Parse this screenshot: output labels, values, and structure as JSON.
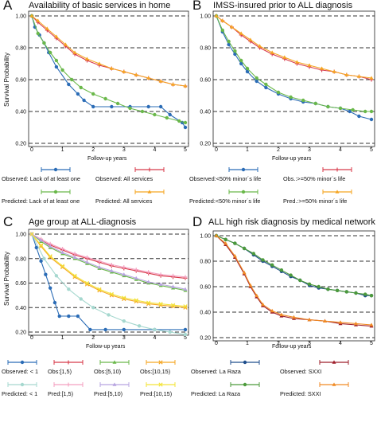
{
  "chart_data": [
    {
      "panel": "A",
      "title": "Availability of basic services in home",
      "type": "line",
      "ylabel": "Survival Probability",
      "xlabel": "Follow-up years",
      "xlim": [
        0,
        5
      ],
      "ylim": [
        0.2,
        1.0
      ],
      "xticks": [
        "0",
        "1",
        "2",
        "3",
        "4",
        "5"
      ],
      "yticks": [
        "0.20",
        "0.40",
        "0.60",
        "0.80",
        "1.00"
      ],
      "dashed_grid_y": [
        0.2,
        0.4,
        0.6,
        0.8,
        1.0
      ],
      "series": [
        {
          "name": "Observed: Lack of at least one",
          "color": "#2b6cb6",
          "marker": "circle",
          "x": [
            0,
            0.1,
            0.25,
            0.4,
            0.55,
            0.8,
            1.2,
            1.5,
            1.7,
            2.0,
            2.6,
            3.2,
            3.8,
            4.2,
            4.5,
            4.9,
            5.0
          ],
          "y": [
            1.0,
            0.93,
            0.88,
            0.83,
            0.77,
            0.68,
            0.57,
            0.51,
            0.47,
            0.43,
            0.43,
            0.43,
            0.43,
            0.43,
            0.38,
            0.33,
            0.3
          ]
        },
        {
          "name": "Observed: All services",
          "color": "#d83a4a",
          "marker": "plus",
          "x": [
            0,
            0.2,
            0.5,
            0.8,
            1.1,
            1.4,
            1.8,
            2.2,
            2.6,
            3.0,
            3.4,
            3.8,
            4.2,
            4.6,
            5.0
          ],
          "y": [
            1.0,
            0.96,
            0.91,
            0.86,
            0.81,
            0.76,
            0.72,
            0.69,
            0.67,
            0.65,
            0.63,
            0.61,
            0.59,
            0.57,
            0.56
          ]
        },
        {
          "name": "Predicted: Lack of at least one",
          "color": "#6ab84a",
          "marker": "circle",
          "x": [
            0,
            0.2,
            0.4,
            0.6,
            0.8,
            1.0,
            1.3,
            1.6,
            2.0,
            2.4,
            2.8,
            3.2,
            3.6,
            4.0,
            4.4,
            4.8,
            5.0
          ],
          "y": [
            1.0,
            0.89,
            0.83,
            0.77,
            0.72,
            0.66,
            0.6,
            0.55,
            0.51,
            0.48,
            0.45,
            0.42,
            0.4,
            0.38,
            0.36,
            0.34,
            0.33
          ]
        },
        {
          "name": "Predicted: All services",
          "color": "#f5a623",
          "marker": "triangle",
          "x": [
            0,
            0.2,
            0.5,
            0.8,
            1.1,
            1.4,
            1.8,
            2.2,
            2.6,
            3.0,
            3.4,
            3.8,
            4.2,
            4.6,
            5.0
          ],
          "y": [
            1.0,
            0.97,
            0.92,
            0.87,
            0.82,
            0.77,
            0.73,
            0.7,
            0.67,
            0.65,
            0.63,
            0.61,
            0.59,
            0.57,
            0.56
          ]
        }
      ]
    },
    {
      "panel": "B",
      "title": "IMSS-insured prior to ALL diagnosis",
      "type": "line",
      "xlabel": "Follow-up years",
      "xlim": [
        0,
        5
      ],
      "ylim": [
        0.2,
        1.0
      ],
      "xticks": [
        "0",
        "1",
        "2",
        "3",
        "4",
        "5"
      ],
      "yticks": [
        "0.20",
        "0.40",
        "0.60",
        "0.80",
        "1.00"
      ],
      "dashed_grid_y": [
        0.2,
        0.4,
        0.6,
        0.8,
        1.0
      ],
      "series": [
        {
          "name": "Observed:<50% minor´s life",
          "color": "#2b6cb6",
          "marker": "circle",
          "x": [
            0,
            0.2,
            0.4,
            0.6,
            0.8,
            1.0,
            1.3,
            1.6,
            2.0,
            2.4,
            2.8,
            3.2,
            3.6,
            4.0,
            4.3,
            4.6,
            5.0
          ],
          "y": [
            1.0,
            0.9,
            0.82,
            0.76,
            0.7,
            0.65,
            0.59,
            0.55,
            0.51,
            0.48,
            0.46,
            0.45,
            0.43,
            0.42,
            0.4,
            0.37,
            0.35
          ]
        },
        {
          "name": "Obs.:>=50% minor´s life",
          "color": "#d83a4a",
          "marker": "plus",
          "x": [
            0,
            0.2,
            0.5,
            0.8,
            1.1,
            1.4,
            1.8,
            2.2,
            2.6,
            3.0,
            3.4,
            3.8,
            4.2,
            4.6,
            5.0
          ],
          "y": [
            1.0,
            0.97,
            0.93,
            0.88,
            0.84,
            0.8,
            0.76,
            0.73,
            0.7,
            0.68,
            0.66,
            0.65,
            0.63,
            0.62,
            0.6
          ]
        },
        {
          "name": "Predicted:<50% minor´s life",
          "color": "#6ab84a",
          "marker": "circle",
          "x": [
            0,
            0.2,
            0.4,
            0.6,
            0.8,
            1.0,
            1.3,
            1.6,
            2.0,
            2.4,
            2.8,
            3.2,
            3.6,
            4.0,
            4.4,
            4.8,
            5.0
          ],
          "y": [
            1.0,
            0.91,
            0.84,
            0.78,
            0.72,
            0.67,
            0.61,
            0.57,
            0.52,
            0.49,
            0.47,
            0.45,
            0.43,
            0.42,
            0.41,
            0.4,
            0.4
          ]
        },
        {
          "name": "Pred.:>=50% minor´s life",
          "color": "#f5a623",
          "marker": "triangle",
          "x": [
            0,
            0.2,
            0.5,
            0.8,
            1.1,
            1.4,
            1.8,
            2.2,
            2.6,
            3.0,
            3.4,
            3.8,
            4.2,
            4.6,
            5.0
          ],
          "y": [
            1.0,
            0.97,
            0.93,
            0.89,
            0.85,
            0.81,
            0.77,
            0.74,
            0.71,
            0.69,
            0.67,
            0.65,
            0.63,
            0.62,
            0.61
          ]
        }
      ]
    },
    {
      "panel": "C",
      "title": "Age group at ALL-diagnosis",
      "type": "line",
      "ylabel": "Survival Probability",
      "xlabel": "Follow-up years",
      "xlim": [
        0,
        5
      ],
      "ylim": [
        0.2,
        1.0
      ],
      "xticks": [
        "0",
        "1",
        "2",
        "3",
        "4",
        "5"
      ],
      "yticks": [
        "0.20",
        "0.40",
        "0.60",
        "0.80",
        "1.00"
      ],
      "dashed_grid_y": [
        0.2,
        0.4,
        0.6,
        0.8,
        1.0
      ],
      "series": [
        {
          "name": "Observed: < 1",
          "color": "#2b6cb6",
          "marker": "circle",
          "x": [
            0,
            0.15,
            0.3,
            0.45,
            0.6,
            0.75,
            0.9,
            1.2,
            1.5,
            1.9,
            2.4,
            3.0,
            4.0,
            5.0
          ],
          "y": [
            1.0,
            0.89,
            0.78,
            0.67,
            0.56,
            0.44,
            0.33,
            0.33,
            0.33,
            0.22,
            0.22,
            0.22,
            0.22,
            0.22
          ]
        },
        {
          "name": "Obs:[1,5)",
          "color": "#d83a4a",
          "marker": "plus",
          "x": [
            0,
            0.3,
            0.6,
            1.0,
            1.4,
            1.8,
            2.2,
            2.6,
            3.0,
            3.4,
            3.8,
            4.2,
            4.6,
            5.0
          ],
          "y": [
            1.0,
            0.95,
            0.91,
            0.87,
            0.83,
            0.8,
            0.77,
            0.74,
            0.72,
            0.7,
            0.68,
            0.66,
            0.65,
            0.64
          ]
        },
        {
          "name": "Obs:[5,10)",
          "color": "#6ab84a",
          "marker": "triangle",
          "x": [
            0,
            0.3,
            0.6,
            1.0,
            1.4,
            1.8,
            2.2,
            2.6,
            3.0,
            3.4,
            3.8,
            4.2,
            4.6,
            5.0
          ],
          "y": [
            1.0,
            0.94,
            0.89,
            0.84,
            0.8,
            0.76,
            0.72,
            0.69,
            0.66,
            0.63,
            0.6,
            0.58,
            0.56,
            0.54
          ]
        },
        {
          "name": "Obs:[10,15)",
          "color": "#f5a623",
          "marker": "x",
          "x": [
            0,
            0.3,
            0.6,
            1.0,
            1.4,
            1.8,
            2.2,
            2.6,
            3.0,
            3.4,
            3.8,
            4.2,
            4.6,
            5.0
          ],
          "y": [
            1.0,
            0.9,
            0.81,
            0.73,
            0.65,
            0.59,
            0.54,
            0.5,
            0.47,
            0.45,
            0.43,
            0.42,
            0.41,
            0.4
          ]
        },
        {
          "name": "Predicted: < 1",
          "color": "#a6d8cf",
          "marker": "circle",
          "x": [
            0,
            0.4,
            0.8,
            1.2,
            1.6,
            2.0,
            2.5,
            3.0,
            3.5,
            4.0,
            4.5,
            5.0
          ],
          "y": [
            1.0,
            0.8,
            0.66,
            0.55,
            0.47,
            0.4,
            0.34,
            0.29,
            0.25,
            0.22,
            0.2,
            0.18
          ]
        },
        {
          "name": "Pred:[1,5)",
          "color": "#f4a0c0",
          "marker": "plus",
          "x": [
            0,
            0.3,
            0.6,
            1.0,
            1.4,
            1.8,
            2.2,
            2.6,
            3.0,
            3.4,
            3.8,
            4.2,
            4.6,
            5.0
          ],
          "y": [
            1.0,
            0.96,
            0.92,
            0.88,
            0.84,
            0.81,
            0.78,
            0.75,
            0.73,
            0.71,
            0.69,
            0.67,
            0.66,
            0.65
          ]
        },
        {
          "name": "Pred:[5,10)",
          "color": "#b7a4e0",
          "marker": "triangle",
          "x": [
            0,
            0.3,
            0.6,
            1.0,
            1.4,
            1.8,
            2.2,
            2.6,
            3.0,
            3.4,
            3.8,
            4.2,
            4.6,
            5.0
          ],
          "y": [
            1.0,
            0.95,
            0.9,
            0.85,
            0.81,
            0.77,
            0.73,
            0.7,
            0.67,
            0.64,
            0.61,
            0.59,
            0.57,
            0.55
          ]
        },
        {
          "name": "Pred:[10,15)",
          "color": "#f3e43a",
          "marker": "x",
          "x": [
            0,
            0.3,
            0.6,
            1.0,
            1.4,
            1.8,
            2.2,
            2.6,
            3.0,
            3.4,
            3.8,
            4.2,
            4.6,
            5.0
          ],
          "y": [
            1.0,
            0.91,
            0.82,
            0.74,
            0.66,
            0.6,
            0.55,
            0.51,
            0.48,
            0.46,
            0.44,
            0.43,
            0.42,
            0.41
          ]
        }
      ]
    },
    {
      "panel": "D",
      "title": "ALL high risk diagnosis by medical network",
      "type": "line",
      "xlabel": "Follow-up years",
      "xlim": [
        0,
        5
      ],
      "ylim": [
        0.2,
        1.0
      ],
      "xticks": [
        "0",
        "1",
        "2",
        "3",
        "4",
        "5"
      ],
      "yticks": [
        "0.20",
        "0.40",
        "0.60",
        "0.80",
        "1.00"
      ],
      "dashed_grid_y": [
        0.2,
        0.4,
        0.6,
        0.8,
        1.0
      ],
      "series": [
        {
          "name": "Observed: La Raza",
          "color": "#1f4e8c",
          "marker": "circle",
          "x": [
            0,
            0.3,
            0.6,
            0.9,
            1.2,
            1.5,
            1.8,
            2.1,
            2.4,
            2.7,
            3.0,
            3.3,
            3.6,
            3.9,
            4.2,
            4.5,
            4.8,
            5.0
          ],
          "y": [
            1.0,
            0.97,
            0.94,
            0.9,
            0.85,
            0.8,
            0.76,
            0.72,
            0.68,
            0.65,
            0.61,
            0.59,
            0.58,
            0.57,
            0.56,
            0.55,
            0.53,
            0.53
          ]
        },
        {
          "name": "Observed: SXXI",
          "color": "#9e1f2b",
          "marker": "triangle",
          "x": [
            0,
            0.3,
            0.6,
            0.9,
            1.1,
            1.3,
            1.5,
            1.8,
            2.1,
            2.5,
            3.0,
            3.5,
            4.0,
            4.5,
            5.0
          ],
          "y": [
            1.0,
            0.93,
            0.83,
            0.7,
            0.6,
            0.52,
            0.45,
            0.4,
            0.37,
            0.35,
            0.34,
            0.33,
            0.31,
            0.3,
            0.29
          ]
        },
        {
          "name": "Predicted: La Raza",
          "color": "#4c9a3b",
          "marker": "circle",
          "x": [
            0,
            0.3,
            0.6,
            0.9,
            1.2,
            1.5,
            1.8,
            2.1,
            2.4,
            2.7,
            3.0,
            3.3,
            3.6,
            3.9,
            4.2,
            4.5,
            4.8,
            5.0
          ],
          "y": [
            1.0,
            0.97,
            0.94,
            0.9,
            0.86,
            0.81,
            0.77,
            0.73,
            0.69,
            0.65,
            0.62,
            0.6,
            0.58,
            0.57,
            0.56,
            0.55,
            0.54,
            0.53
          ]
        },
        {
          "name": "Predicted: SXXI",
          "color": "#f08a24",
          "marker": "triangle",
          "x": [
            0,
            0.3,
            0.6,
            0.9,
            1.1,
            1.3,
            1.5,
            1.8,
            2.1,
            2.5,
            3.0,
            3.5,
            4.0,
            4.5,
            5.0
          ],
          "y": [
            1.0,
            0.94,
            0.84,
            0.71,
            0.61,
            0.53,
            0.46,
            0.41,
            0.38,
            0.36,
            0.34,
            0.33,
            0.32,
            0.31,
            0.3
          ]
        }
      ]
    }
  ]
}
